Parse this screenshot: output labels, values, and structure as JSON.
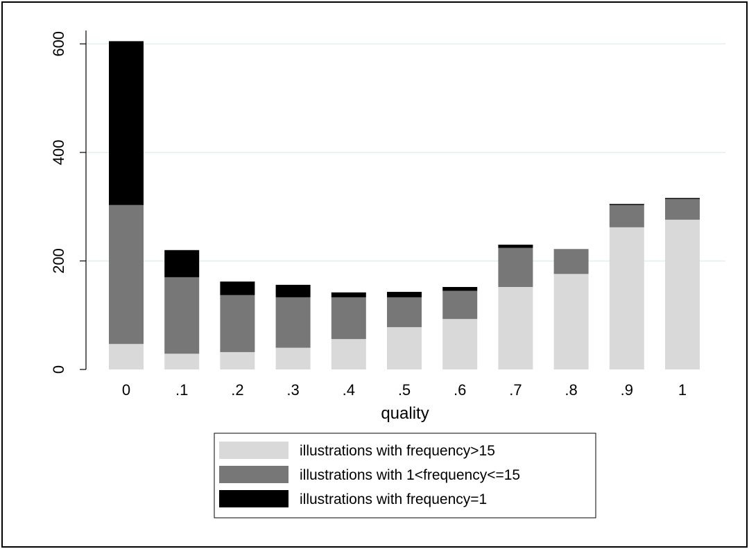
{
  "chart_data": {
    "type": "bar",
    "stacked": true,
    "title": "",
    "xlabel": "quality",
    "ylabel": "",
    "categories": [
      "0",
      ".1",
      ".2",
      ".3",
      ".4",
      ".5",
      ".6",
      ".7",
      ".8",
      ".9",
      "1"
    ],
    "ylim": [
      0,
      640
    ],
    "yticks": [
      0,
      200,
      400,
      600
    ],
    "grid": true,
    "legend_position": "bottom",
    "series": [
      {
        "name": "illustrations with frequency>15",
        "color": "#d9d9d9",
        "values": [
          47,
          29,
          32,
          40,
          56,
          78,
          93,
          152,
          176,
          262,
          276
        ]
      },
      {
        "name": "illustrations with 1<frequency<=15",
        "color": "#777777",
        "values": [
          256,
          141,
          105,
          93,
          77,
          55,
          52,
          72,
          46,
          41,
          38
        ]
      },
      {
        "name": "illustrations with frequency=1",
        "color": "#000000",
        "values": [
          302,
          50,
          25,
          23,
          9,
          10,
          7,
          6,
          0,
          2,
          2
        ]
      }
    ]
  }
}
